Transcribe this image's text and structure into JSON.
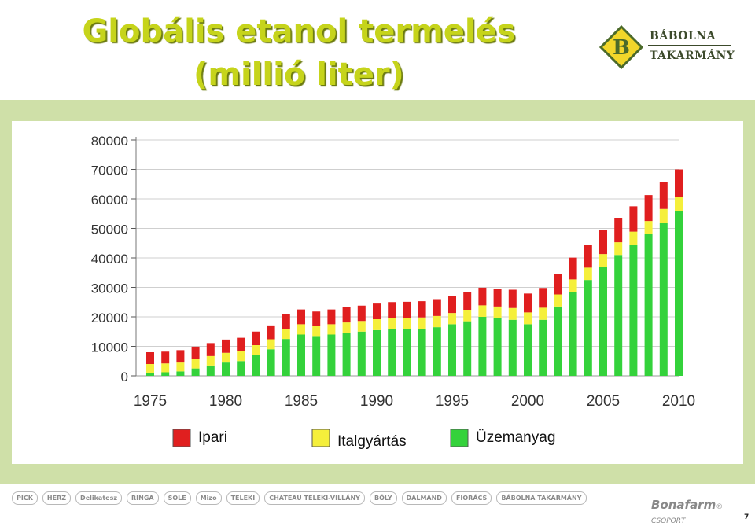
{
  "title_line1": "Globális etanol termelés",
  "title_line2": "(millió liter)",
  "logo": {
    "line1": "BÁBOLNA",
    "line2": "TAKARMÁNY",
    "mark": "B"
  },
  "colors": {
    "ipari": "#e01f1f",
    "ital": "#f5ef3b",
    "uzem": "#34d23b",
    "panel": "#cfe0a8",
    "title": "#c6d41b"
  },
  "chart_data": {
    "type": "bar",
    "stacked": true,
    "x": [
      1975,
      1976,
      1977,
      1978,
      1979,
      1980,
      1981,
      1982,
      1983,
      1984,
      1985,
      1986,
      1987,
      1988,
      1989,
      1990,
      1991,
      1992,
      1993,
      1994,
      1995,
      1996,
      1997,
      1998,
      1999,
      2000,
      2001,
      2002,
      2003,
      2004,
      2005,
      2006,
      2007,
      2008,
      2009,
      2010
    ],
    "x_ticks": [
      "1975",
      "1980",
      "1985",
      "1990",
      "1995",
      "2000",
      "2005",
      "2010"
    ],
    "y_ticks": [
      "0",
      "10000",
      "20000",
      "30000",
      "40000",
      "50000",
      "60000",
      "70000",
      "80000"
    ],
    "ylim": [
      0,
      80000
    ],
    "series": [
      {
        "name": "Üzemanyag",
        "values": [
          1000,
          1200,
          1500,
          2500,
          3500,
          4500,
          5000,
          7000,
          9000,
          12500,
          14000,
          13500,
          14000,
          14500,
          15000,
          15500,
          16000,
          16000,
          16000,
          16500,
          17500,
          18500,
          20000,
          19500,
          19000,
          17500,
          19000,
          23500,
          28500,
          32500,
          37000,
          41000,
          44500,
          48000,
          52000,
          56000
        ]
      },
      {
        "name": "Italgyártás",
        "values": [
          3000,
          3000,
          3000,
          3100,
          3200,
          3300,
          3400,
          3400,
          3400,
          3500,
          3500,
          3500,
          3500,
          3600,
          3600,
          3700,
          3700,
          3700,
          3800,
          3800,
          3800,
          3900,
          3900,
          4000,
          4000,
          4000,
          4100,
          4100,
          4200,
          4200,
          4300,
          4300,
          4400,
          4500,
          4600,
          4700
        ]
      },
      {
        "name": "Ipari",
        "values": [
          4000,
          4000,
          4200,
          4300,
          4400,
          4500,
          4500,
          4600,
          4700,
          4800,
          5000,
          4800,
          5000,
          5100,
          5200,
          5300,
          5300,
          5400,
          5500,
          5700,
          5800,
          5900,
          6000,
          6100,
          6200,
          6400,
          6700,
          7000,
          7400,
          7800,
          8100,
          8300,
          8600,
          8800,
          9000,
          9300
        ]
      }
    ],
    "legend_position": "bottom"
  },
  "brands": [
    "PICK",
    "HERZ",
    "Delikatesz",
    "RINGA",
    "SOLE",
    "Mizo",
    "TELEKI",
    "CHATEAU TELEKI-VILLÁNY",
    "BÓLY",
    "DALMAND",
    "FIORÁCS",
    "BÁBOLNA TAKARMÁNY"
  ],
  "footer": {
    "brand": "Bonafarm",
    "suffix": "® CSOPORT",
    "page": "7"
  }
}
